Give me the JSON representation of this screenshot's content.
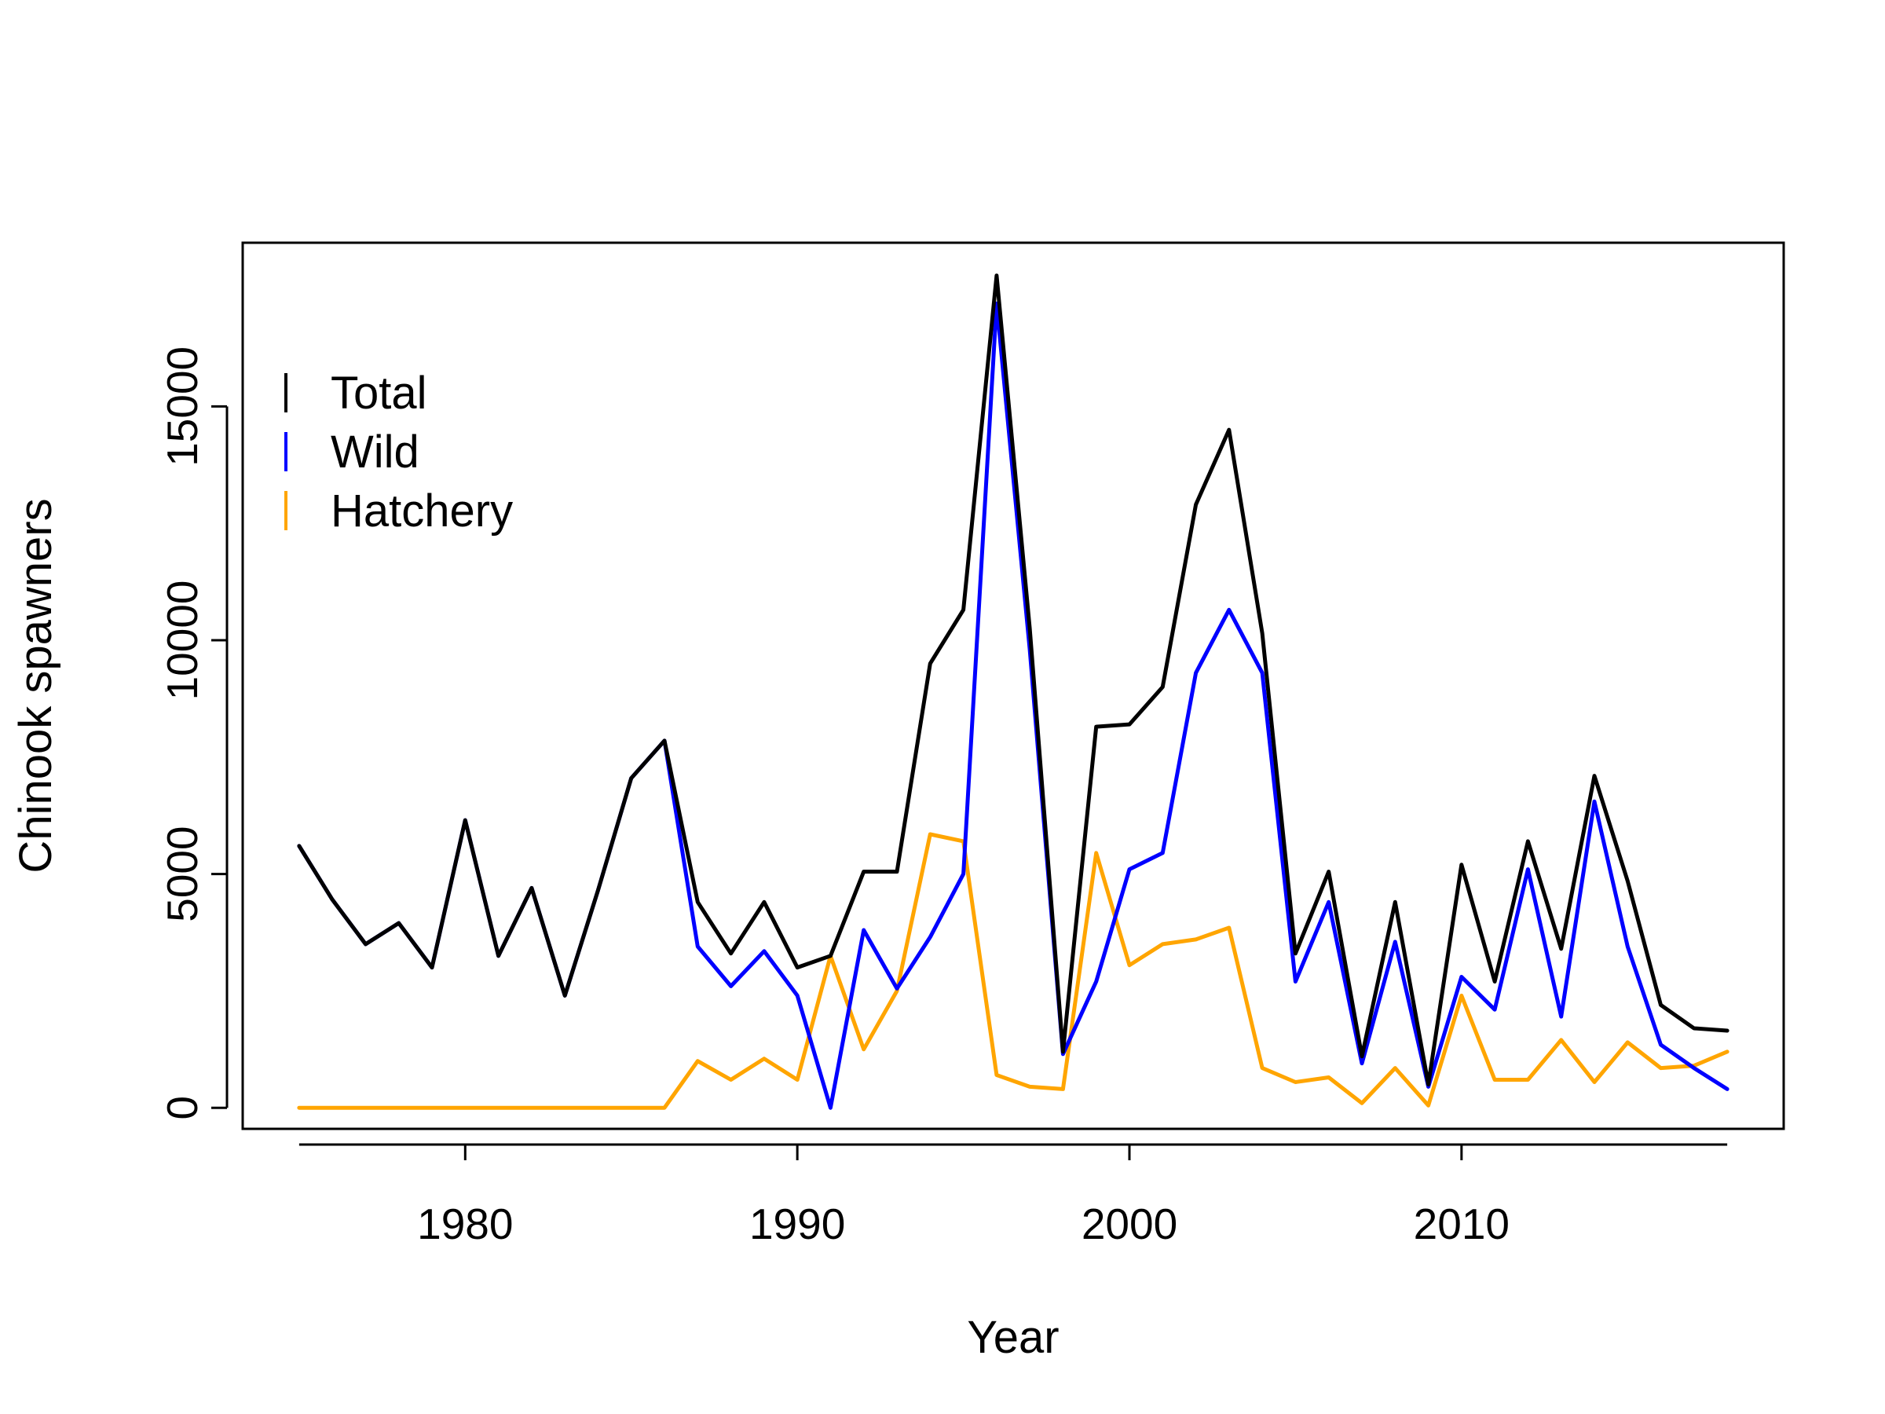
{
  "chart_data": {
    "type": "line",
    "title": "",
    "xlabel": "Year",
    "ylabel": "Chinook spawners",
    "xlim": [
      1973.3,
      2019.7
    ],
    "ylim": [
      -450,
      18500
    ],
    "xticks": [
      1980,
      1990,
      2000,
      2010
    ],
    "yticks": [
      0,
      5000,
      10000,
      15000
    ],
    "xtick_labels": [
      "1980",
      "1990",
      "2000",
      "2010"
    ],
    "ytick_labels": [
      "0",
      "5000",
      "10000",
      "15000"
    ],
    "grid": false,
    "legend": "top-left",
    "x": [
      1975,
      1976,
      1977,
      1978,
      1979,
      1980,
      1981,
      1982,
      1983,
      1984,
      1985,
      1986,
      1987,
      1988,
      1989,
      1990,
      1991,
      1992,
      1993,
      1994,
      1995,
      1996,
      1997,
      1998,
      1999,
      2000,
      2001,
      2002,
      2003,
      2004,
      2005,
      2006,
      2007,
      2008,
      2009,
      2010,
      2011,
      2012,
      2013,
      2014,
      2015,
      2016,
      2017,
      2018
    ],
    "series": [
      {
        "name": "Total",
        "color": "#000000",
        "values": [
          5600,
          4450,
          3500,
          3950,
          3000,
          6150,
          3250,
          4700,
          2400,
          4650,
          7050,
          7850,
          4400,
          3300,
          4400,
          3000,
          3250,
          5050,
          5050,
          9500,
          10650,
          17800,
          10250,
          1200,
          8150,
          8200,
          9000,
          12900,
          14500,
          10150,
          3300,
          5050,
          1100,
          4400,
          500,
          5200,
          2700,
          5700,
          3400,
          7100,
          4850,
          2200,
          1700,
          1650
        ]
      },
      {
        "name": "Wild",
        "color": "#0000ff",
        "values": [
          5600,
          4450,
          3500,
          3950,
          3000,
          6150,
          3250,
          4700,
          2400,
          4650,
          7050,
          7850,
          3450,
          2600,
          3350,
          2400,
          0,
          3800,
          2550,
          3650,
          5000,
          17200,
          9800,
          1150,
          2700,
          5100,
          5450,
          9300,
          10650,
          9300,
          2700,
          4400,
          950,
          3550,
          450,
          2800,
          2100,
          5100,
          1950,
          6550,
          3450,
          1350,
          850,
          400
        ]
      },
      {
        "name": "Hatchery",
        "color": "#ffa500",
        "values": [
          0,
          0,
          0,
          0,
          0,
          0,
          0,
          0,
          0,
          0,
          0,
          0,
          1000,
          600,
          1050,
          600,
          3250,
          1250,
          2500,
          5850,
          5700,
          700,
          450,
          400,
          5450,
          3050,
          3500,
          3600,
          3850,
          850,
          550,
          650,
          100,
          850,
          50,
          2400,
          600,
          600,
          1450,
          550,
          1400,
          850,
          900,
          1200
        ]
      }
    ]
  }
}
